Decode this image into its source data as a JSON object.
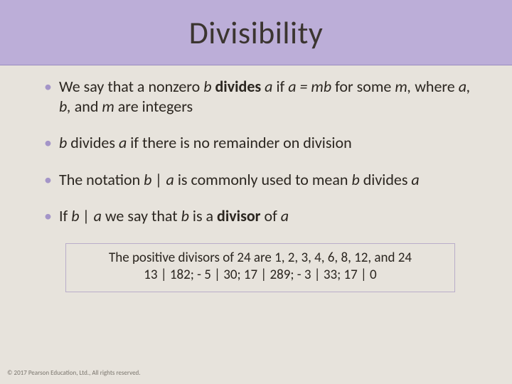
{
  "colors": {
    "header_bg": "#bcaed8",
    "body_bg": "#e7e3dc",
    "bullet_dot": "#a495c8",
    "text": "#2b2620",
    "box_border": "#b9adc9",
    "copyright": "#7a756d"
  },
  "typography": {
    "title_fontsize": 44,
    "body_fontsize": 22,
    "box_fontsize": 19,
    "copyright_fontsize": 9
  },
  "title": "Divisibility",
  "bullets": {
    "b1_pre": "We say that a nonzero ",
    "b1_b": "b",
    "b1_space": " ",
    "b1_divides": "divides",
    "b1_sp2": " ",
    "b1_a": "a",
    "b1_if": " if ",
    "b1_eq": "a = mb",
    "b1_for": " for some ",
    "b1_m": "m,",
    "b1_where": " where ",
    "b1_abm": "a, b,",
    "b1_and": " and ",
    "b1_m2": "m",
    "b1_post": " are integers",
    "b2_b": "b",
    "b2_mid": " divides ",
    "b2_a": "a",
    "b2_post": " if there is no remainder on division",
    "b3_pre": "The notation ",
    "b3_ba": "b | a",
    "b3_mid": " is commonly used to mean ",
    "b3_b": "b",
    "b3_div": " divides ",
    "b3_a": "a",
    "b4_pre": "If ",
    "b4_ba": "b | a",
    "b4_mid": " we say that ",
    "b4_b": "b",
    "b4_isa": " is a ",
    "b4_divisor": "divisor",
    "b4_of": " of ",
    "b4_a": "a"
  },
  "example": {
    "line1": "The positive divisors of 24 are 1, 2, 3, 4, 6, 8, 12, and 24",
    "line2": "13 | 182; - 5 | 30; 17 | 289; - 3 | 33; 17 | 0"
  },
  "copyright": "© 2017 Pearson Education, Ltd., All rights reserved."
}
